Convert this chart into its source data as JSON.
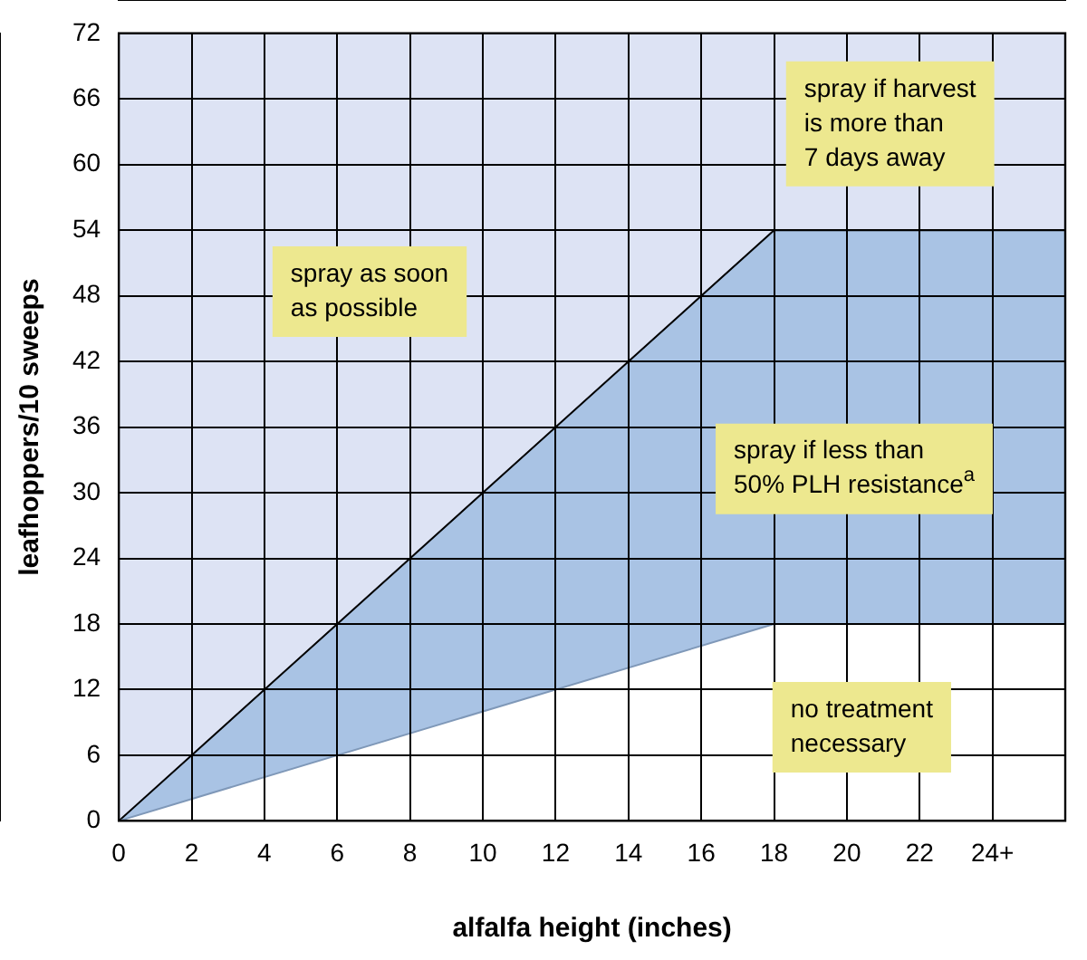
{
  "chart_data": {
    "type": "area",
    "stacked": true,
    "xlabel": "alfalfa height (inches)",
    "ylabel": "leafhoppers/10 sweeps",
    "x": [
      0,
      18,
      26
    ],
    "series": [
      {
        "values": [
          0,
          18,
          18
        ],
        "color": "#ffffff"
      },
      {
        "values": [
          0,
          36,
          36
        ],
        "color": "#a9c3e4"
      },
      {
        "values": [
          72,
          18,
          18
        ],
        "color": "#dde3f4"
      }
    ],
    "xlim": [
      0,
      26
    ],
    "xticks": [
      0,
      2,
      4,
      6,
      8,
      10,
      12,
      14,
      16,
      18,
      20,
      22,
      {
        "value": 24,
        "label": "24+"
      }
    ],
    "ylim": [
      0,
      72
    ],
    "yticks": [
      0,
      6,
      12,
      18,
      24,
      30,
      36,
      42,
      48,
      54,
      60,
      66,
      72
    ],
    "grid": true,
    "legend": false,
    "annotations": [
      "spray as soon\nas possible",
      "spray if harvest\nis more than\n7 days away",
      "spray if less than\n50% PLH resistance$^{a}$",
      "no treatment\nnecessary"
    ]
  }
}
